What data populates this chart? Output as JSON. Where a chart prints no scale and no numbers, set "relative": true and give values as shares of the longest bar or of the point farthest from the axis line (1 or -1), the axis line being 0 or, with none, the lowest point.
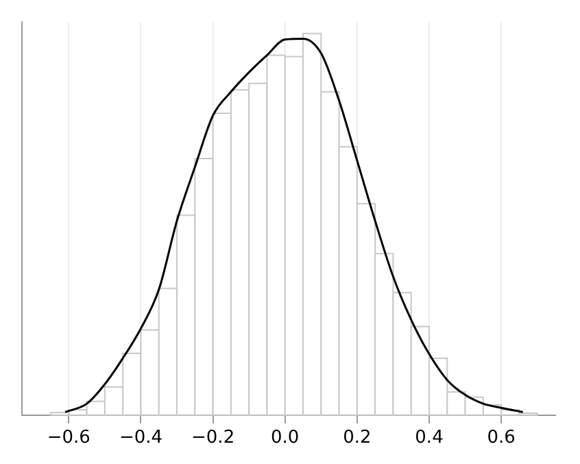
{
  "chart_data": {
    "type": "histogram",
    "relative": true,
    "bins": [
      -0.65,
      -0.6,
      -0.55,
      -0.5,
      -0.45,
      -0.4,
      -0.35,
      -0.3,
      -0.25,
      -0.2,
      -0.15,
      -0.1,
      -0.05,
      0,
      0.05,
      0.1,
      0.15,
      0.2,
      0.25,
      0.3,
      0.35,
      0.4,
      0.45,
      0.5,
      0.55,
      0.6,
      0.65,
      0.7
    ],
    "values": [
      0.007,
      0.014,
      0.036,
      0.074,
      0.162,
      0.223,
      0.332,
      0.524,
      0.672,
      0.791,
      0.852,
      0.869,
      0.943,
      0.939,
      1,
      0.847,
      0.703,
      0.554,
      0.423,
      0.321,
      0.232,
      0.149,
      0.061,
      0.047,
      0.027,
      0.014,
      0.005
    ],
    "color": "#ffffff",
    "series": [
      {
        "type": "line",
        "color": "#000000",
        "x": [
          -0.61,
          -0.55,
          -0.5,
          -0.45,
          -0.4,
          -0.35,
          -0.3,
          -0.25,
          -0.2,
          -0.15,
          -0.1,
          -0.05,
          0,
          0.05,
          0.1,
          0.15,
          0.2,
          0.25,
          0.3,
          0.35,
          0.4,
          0.45,
          0.5,
          0.55,
          0.6,
          0.66
        ],
        "values": [
          0.008,
          0.03,
          0.081,
          0.149,
          0.227,
          0.329,
          0.509,
          0.65,
          0.785,
          0.847,
          0.898,
          0.943,
          0.984,
          0.986,
          0.948,
          0.824,
          0.667,
          0.509,
          0.363,
          0.25,
          0.16,
          0.092,
          0.053,
          0.03,
          0.019,
          0.008
        ]
      }
    ],
    "xlim": [
      -0.73,
      0.75
    ],
    "xticks": [
      {
        "value": -0.6,
        "label": "−0.6"
      },
      {
        "value": -0.4,
        "label": "−0.4"
      },
      {
        "value": -0.2,
        "label": "−0.2"
      },
      {
        "value": 0,
        "label": "0.0"
      },
      0.2,
      0.4,
      0.6
    ],
    "grid": "x",
    "marker": "none",
    "line_style": "solid"
  }
}
